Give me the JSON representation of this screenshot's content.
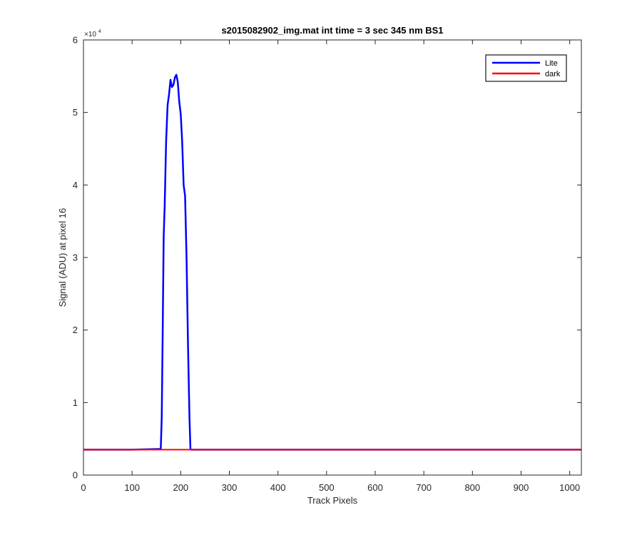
{
  "chart_data": {
    "type": "line",
    "title": "s2015082902_img.mat int time = 3 sec  345 nm BS1",
    "xlabel": "Track Pixels",
    "ylabel": "Signal (ADU) at pixel 16",
    "xlim": [
      0,
      1024
    ],
    "ylim": [
      0,
      60000
    ],
    "x_ticks": [
      0,
      100,
      200,
      300,
      400,
      500,
      600,
      700,
      800,
      900,
      1000
    ],
    "x_tick_labels": [
      "0",
      "100",
      "200",
      "300",
      "400",
      "500",
      "600",
      "700",
      "800",
      "900",
      "1000"
    ],
    "y_ticks": [
      0,
      10000,
      20000,
      30000,
      40000,
      50000,
      60000
    ],
    "y_tick_labels": [
      "0",
      "1",
      "2",
      "3",
      "4",
      "5",
      "6"
    ],
    "y_exponent_label": "×10",
    "y_exponent_power": "4",
    "grid": false,
    "legend_position": "top-right",
    "series": [
      {
        "name": "Lite",
        "color": "#0000ff",
        "x": [
          0,
          100,
          159,
          161,
          163,
          165,
          167,
          170,
          173,
          176,
          179,
          182,
          185,
          188,
          191,
          194,
          197,
          200,
          203,
          206,
          209,
          212,
          215,
          218,
          220,
          222,
          224,
          226,
          228,
          230,
          1024
        ],
        "y": [
          3500,
          3500,
          3600,
          8000,
          20000,
          33000,
          37000,
          46000,
          51000,
          52500,
          54500,
          53500,
          53800,
          54800,
          55200,
          54200,
          51500,
          49800,
          46000,
          40000,
          38500,
          30000,
          18000,
          8000,
          3600,
          3500,
          3500,
          3500,
          3500,
          3500,
          3500
        ]
      },
      {
        "name": "dark",
        "color": "#ff0000",
        "x": [
          0,
          1024
        ],
        "y": [
          3500,
          3500
        ]
      }
    ]
  }
}
